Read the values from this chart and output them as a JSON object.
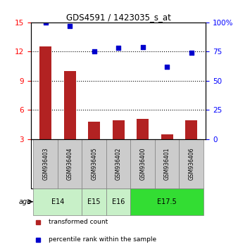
{
  "title": "GDS4591 / 1423035_s_at",
  "samples": [
    "GSM936403",
    "GSM936404",
    "GSM936405",
    "GSM936402",
    "GSM936400",
    "GSM936401",
    "GSM936406"
  ],
  "transformed_count": [
    12.5,
    10.0,
    4.8,
    4.9,
    5.1,
    3.5,
    4.9
  ],
  "percentile_rank": [
    100,
    97,
    75,
    78,
    79,
    62,
    74
  ],
  "left_ylim": [
    3,
    15
  ],
  "left_yticks": [
    3,
    6,
    9,
    12,
    15
  ],
  "right_ylim": [
    0,
    100
  ],
  "right_yticks": [
    0,
    25,
    50,
    75,
    100
  ],
  "right_yticklabels": [
    "0",
    "25",
    "50",
    "75",
    "100%"
  ],
  "bar_color": "#b22222",
  "dot_color": "#0000cd",
  "bar_width": 0.5,
  "legend_red_label": "transformed count",
  "legend_blue_label": "percentile rank within the sample",
  "grid_yticks": [
    6,
    9,
    12
  ],
  "sample_box_color": "#cccccc",
  "age_defs": [
    [
      0,
      1,
      "E14",
      "#c8f0c8"
    ],
    [
      2,
      2,
      "E15",
      "#c8f0c8"
    ],
    [
      3,
      3,
      "E16",
      "#c8f0c8"
    ],
    [
      4,
      6,
      "E17.5",
      "#33dd33"
    ]
  ]
}
